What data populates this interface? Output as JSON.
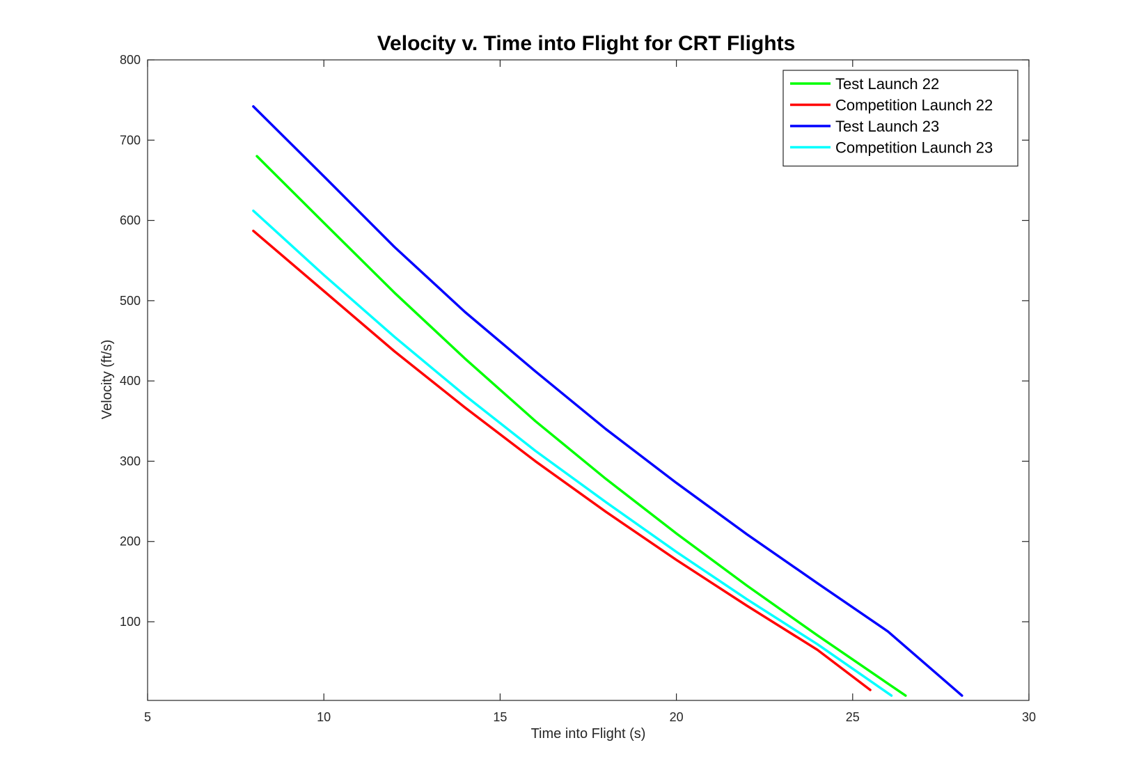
{
  "chart_data": {
    "type": "line",
    "title": "Velocity v. Time into Flight for CRT Flights",
    "xlabel": "Time into Flight (s)",
    "ylabel": "Velocity (ft/s)",
    "xlim": [
      5,
      30
    ],
    "ylim": [
      2,
      800
    ],
    "xticks": [
      5,
      10,
      15,
      20,
      25,
      30
    ],
    "yticks": [
      100,
      200,
      300,
      400,
      500,
      600,
      700,
      800
    ],
    "grid": false,
    "legend_position": "top-right",
    "series": [
      {
        "name": "Test Launch 22",
        "color": "#00ff00",
        "x": [
          8.1,
          10,
          12,
          14,
          16,
          18,
          20,
          22,
          24,
          26,
          26.5
        ],
        "y": [
          680,
          597,
          510,
          428,
          350,
          278,
          210,
          145,
          83,
          23,
          8
        ]
      },
      {
        "name": "Competition Launch 22",
        "color": "#ff0000",
        "x": [
          8.0,
          10,
          12,
          14,
          16,
          18,
          20,
          22,
          24,
          25.5
        ],
        "y": [
          587,
          512,
          437,
          367,
          300,
          237,
          177,
          120,
          65,
          15
        ]
      },
      {
        "name": "Test Launch 23",
        "color": "#0000ff",
        "x": [
          8.0,
          10,
          12,
          14,
          16,
          18,
          20,
          22,
          24,
          26,
          28.1
        ],
        "y": [
          742,
          655,
          567,
          486,
          412,
          340,
          273,
          209,
          148,
          88,
          8
        ]
      },
      {
        "name": "Competition Launch 23",
        "color": "#00ffff",
        "x": [
          8.0,
          10,
          12,
          14,
          16,
          18,
          20,
          22,
          24,
          26.1
        ],
        "y": [
          612,
          532,
          455,
          382,
          313,
          249,
          187,
          128,
          72,
          8
        ]
      }
    ]
  }
}
